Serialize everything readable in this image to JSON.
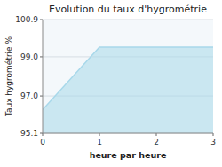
{
  "chart_data": {
    "type": "area",
    "title": "Evolution du taux d'hygrométrie",
    "x_label": "heure par heure",
    "y_label": "Taux hygrométrie %",
    "x": [
      0,
      1,
      3
    ],
    "values": [
      96.3,
      99.5,
      99.5
    ],
    "color": "#a8d8ea",
    "xlim": [
      0,
      3
    ],
    "ylim": [
      95.1,
      100.9
    ],
    "xticks": [
      0,
      1,
      2,
      3
    ],
    "yticks": [
      95.1,
      {
        "value": 97.0,
        "label": "97.0"
      },
      {
        "value": 99.0,
        "label": "99.0"
      },
      100.9
    ],
    "grid": true
  }
}
